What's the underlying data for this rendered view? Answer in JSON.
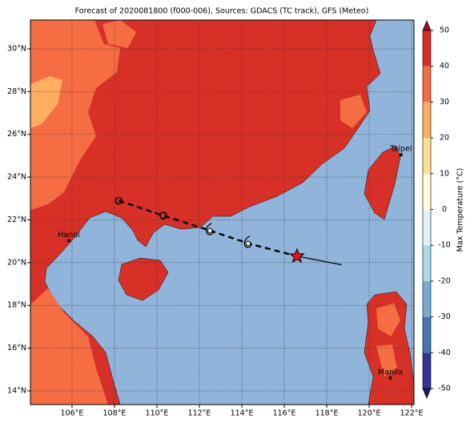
{
  "title": "Forecast of 2020081800 (f000-006), Sources: GDACS (TC track), GFS (Meteo)",
  "map": {
    "xlim": [
      104.04,
      122.11
    ],
    "ylim": [
      13.36,
      31.35
    ],
    "xticks": [
      {
        "value": 106,
        "label": "106°E"
      },
      {
        "value": 108,
        "label": "108°E"
      },
      {
        "value": 110,
        "label": "110°E"
      },
      {
        "value": 112,
        "label": "112°E"
      },
      {
        "value": 114,
        "label": "114°E"
      },
      {
        "value": 116,
        "label": "116°E"
      },
      {
        "value": 118,
        "label": "118°E"
      },
      {
        "value": 120,
        "label": "120°E"
      },
      {
        "value": 122,
        "label": "122°E"
      }
    ],
    "yticks": [
      {
        "value": 14,
        "label": "14°N"
      },
      {
        "value": 16,
        "label": "16°N"
      },
      {
        "value": 18,
        "label": "18°N"
      },
      {
        "value": 20,
        "label": "20°N"
      },
      {
        "value": 22,
        "label": "22°N"
      },
      {
        "value": 24,
        "label": "24°N"
      },
      {
        "value": 26,
        "label": "26°N"
      },
      {
        "value": 28,
        "label": "28°N"
      },
      {
        "value": 30,
        "label": "30°N"
      }
    ],
    "grid": true,
    "cities": [
      {
        "name": "Hanoi",
        "lon": 105.85,
        "lat": 21.03
      },
      {
        "name": "Taipei",
        "lon": 121.5,
        "lat": 25.05
      },
      {
        "name": "Manila",
        "lon": 121.0,
        "lat": 14.6
      }
    ],
    "track": [
      {
        "lon": 108.2,
        "lat": 22.9,
        "marker": "circle"
      },
      {
        "lon": 110.3,
        "lat": 22.2,
        "marker": "circle"
      },
      {
        "lon": 112.5,
        "lat": 21.5,
        "marker": "typhoon"
      },
      {
        "lon": 114.3,
        "lat": 20.9,
        "marker": "typhoon"
      },
      {
        "lon": 116.6,
        "lat": 20.3,
        "marker": "star"
      },
      {
        "lon": 118.7,
        "lat": 19.9,
        "marker": "end"
      }
    ]
  },
  "colorbar": {
    "label": "Max Temperature (°C)",
    "lim": [
      -50,
      50
    ],
    "ticks": [
      -50,
      -40,
      -30,
      -20,
      -10,
      0,
      10,
      20,
      30,
      40,
      50
    ],
    "colors": [
      "#313695",
      "#4575b4",
      "#74add1",
      "#abd9e9",
      "#e0f3f8",
      "#fffbd8",
      "#fee090",
      "#fdae61",
      "#f46d43",
      "#d73027"
    ]
  }
}
